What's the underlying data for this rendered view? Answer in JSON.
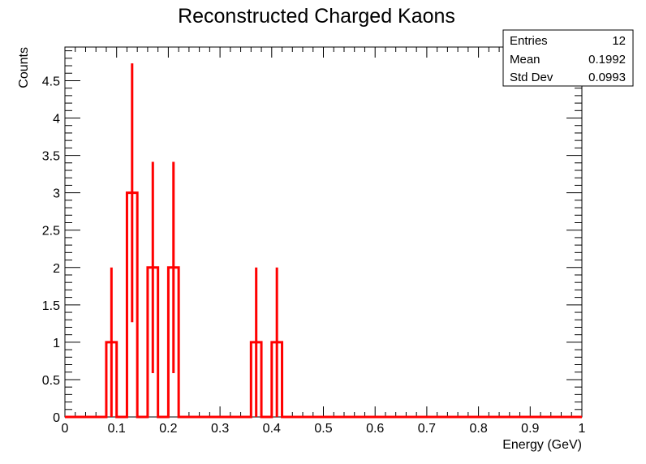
{
  "chart_data": {
    "type": "bar",
    "title": "Reconstructed Charged Kaons",
    "xlabel": "Energy (GeV)",
    "ylabel": "Counts",
    "xlim": [
      0,
      1
    ],
    "ylim": [
      0,
      4.95
    ],
    "grid": false,
    "bin_width": 0.02,
    "color": "#ff0000",
    "x_ticks": [
      0,
      0.1,
      0.2,
      0.3,
      0.4,
      0.5,
      0.6,
      0.7,
      0.8,
      0.9,
      1
    ],
    "x_tick_labels": [
      "0",
      "0.1",
      "0.2",
      "0.3",
      "0.4",
      "0.5",
      "0.6",
      "0.7",
      "0.8",
      "0.9",
      "1"
    ],
    "y_ticks": [
      0,
      0.5,
      1,
      1.5,
      2,
      2.5,
      3,
      3.5,
      4,
      4.5
    ],
    "y_tick_labels": [
      "0",
      "0.5",
      "1",
      "1.5",
      "2",
      "2.5",
      "3",
      "3.5",
      "4",
      "4.5"
    ],
    "bins": [
      {
        "x": 0.09,
        "count": 1,
        "error": 1
      },
      {
        "x": 0.13,
        "count": 3,
        "error": 1.732
      },
      {
        "x": 0.17,
        "count": 2,
        "error": 1.414
      },
      {
        "x": 0.21,
        "count": 2,
        "error": 1.414
      },
      {
        "x": 0.37,
        "count": 1,
        "error": 1
      },
      {
        "x": 0.41,
        "count": 1,
        "error": 1
      }
    ],
    "stats_box": {
      "position": "top-right",
      "rows": [
        {
          "label": "Entries",
          "value": "12"
        },
        {
          "label": "Mean",
          "value": "0.1992"
        },
        {
          "label": "Std Dev",
          "value": "0.0993"
        }
      ]
    }
  }
}
